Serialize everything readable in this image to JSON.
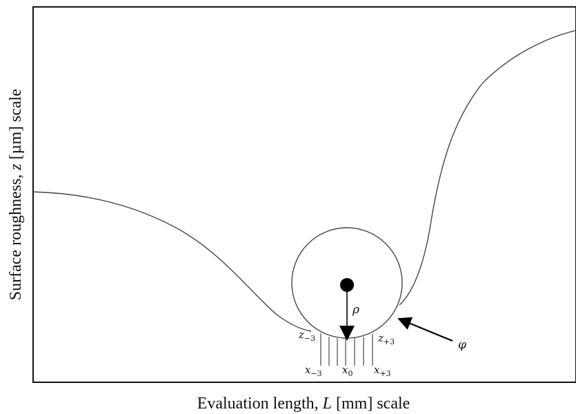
{
  "axes": {
    "x_label_prefix": "Evaluation length, ",
    "x_label_var": "L",
    "x_label_suffix": " [mm] scale",
    "y_label_prefix": "Surface roughness, ",
    "y_label_var": "z",
    "y_label_suffix": " [µm] scale"
  },
  "labels": {
    "rho": "ρ",
    "phi": "φ",
    "z_minus": {
      "base": "z",
      "sub": "−3"
    },
    "z_plus": {
      "base": "z",
      "sub": "+3"
    },
    "x_minus": {
      "base": "x",
      "sub": "−3"
    },
    "x_zero": {
      "base": "x",
      "sub": "0"
    },
    "x_plus": {
      "base": "x",
      "sub": "+3"
    }
  },
  "colors": {
    "line": "#3a3a3a",
    "frame": "#111111",
    "marker": "#000000"
  }
}
